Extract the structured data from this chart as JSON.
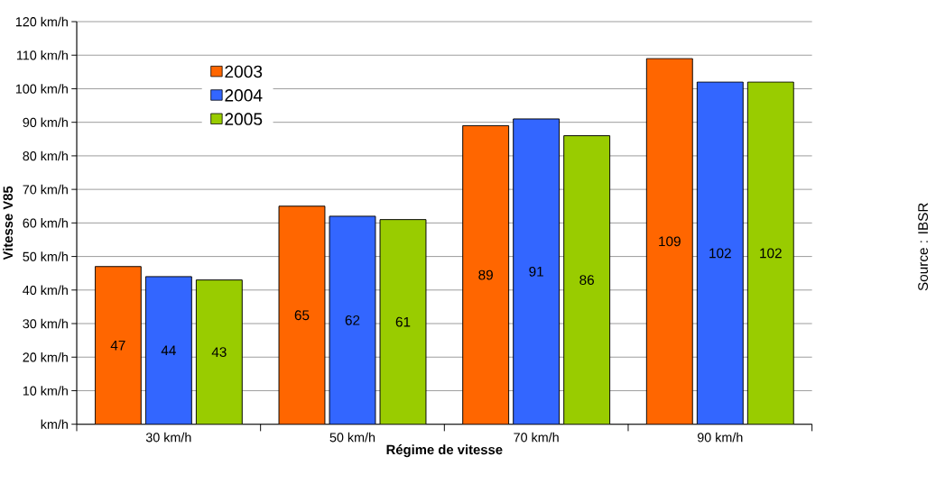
{
  "chart_data": {
    "type": "bar",
    "xlabel": "Régime de vitesse",
    "ylabel": "Vitesse V85",
    "categories": [
      "30 km/h",
      "50 km/h",
      "70 km/h",
      "90 km/h"
    ],
    "series": [
      {
        "name": "2003",
        "color": "#ff6600",
        "values": [
          47,
          65,
          89,
          109
        ]
      },
      {
        "name": "2004",
        "color": "#3366ff",
        "values": [
          44,
          62,
          91,
          102
        ]
      },
      {
        "name": "2005",
        "color": "#99cc00",
        "values": [
          43,
          61,
          86,
          102
        ]
      }
    ],
    "ylim": [
      0,
      120
    ],
    "yticks": [
      {
        "value": 0,
        "label": "km/h"
      },
      {
        "value": 10,
        "label": "10 km/h"
      },
      {
        "value": 20,
        "label": "20 km/h"
      },
      {
        "value": 30,
        "label": "30 km/h"
      },
      {
        "value": 40,
        "label": "40 km/h"
      },
      {
        "value": 50,
        "label": "50 km/h"
      },
      {
        "value": 60,
        "label": "60 km/h"
      },
      {
        "value": 70,
        "label": "70 km/h"
      },
      {
        "value": 80,
        "label": "80 km/h"
      },
      {
        "value": 90,
        "label": "90 km/h"
      },
      {
        "value": 100,
        "label": "100 km/h"
      },
      {
        "value": 110,
        "label": "110 km/h"
      },
      {
        "value": 120,
        "label": "120 km/h"
      }
    ],
    "grid": "y",
    "legend": "top left",
    "data_labels": true,
    "annotations": [
      "Source : IBSR"
    ]
  }
}
